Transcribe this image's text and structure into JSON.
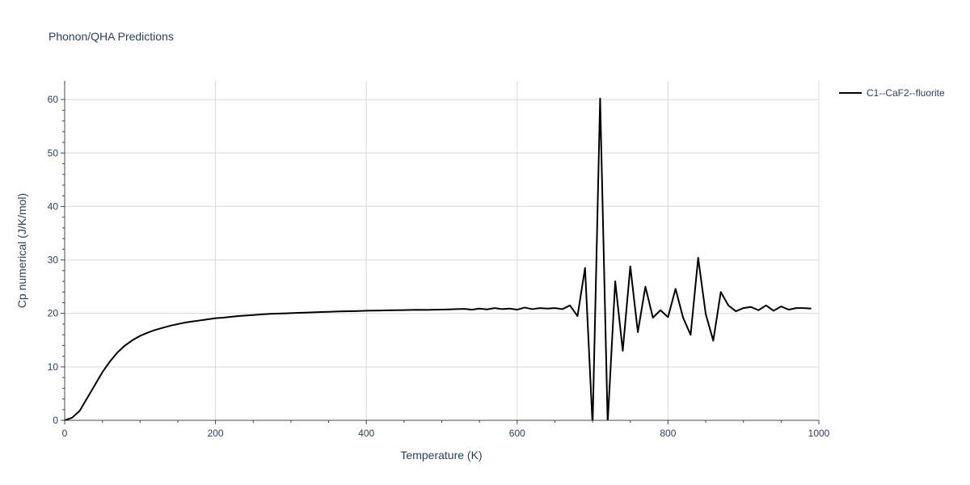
{
  "chart_data": {
    "type": "line",
    "title": "Phonon/QHA Predictions",
    "xlabel": "Temperature (K)",
    "ylabel": "Cp numerical (J/K/mol)",
    "xlim": [
      0,
      1000
    ],
    "ylim": [
      0,
      63.5
    ],
    "xticks": [
      0,
      200,
      400,
      600,
      800,
      1000
    ],
    "yticks": [
      0,
      10,
      20,
      30,
      40,
      50,
      60
    ],
    "grid": true,
    "legend_position": "top-right",
    "colors": {
      "line": "#000000",
      "grid": "#d9d9d9",
      "text": "#2a3f5f"
    },
    "series": [
      {
        "name": "C1--CaF2--fluorite",
        "x": [
          0,
          10,
          20,
          30,
          40,
          50,
          60,
          70,
          80,
          90,
          100,
          110,
          120,
          130,
          140,
          150,
          160,
          170,
          180,
          190,
          200,
          210,
          220,
          230,
          240,
          250,
          260,
          270,
          280,
          290,
          300,
          310,
          320,
          330,
          340,
          350,
          360,
          370,
          380,
          390,
          400,
          410,
          420,
          430,
          440,
          450,
          460,
          470,
          480,
          490,
          500,
          510,
          520,
          530,
          540,
          550,
          560,
          570,
          580,
          590,
          600,
          610,
          620,
          630,
          640,
          650,
          660,
          670,
          680,
          690,
          700,
          710,
          720,
          730,
          740,
          750,
          760,
          770,
          780,
          790,
          800,
          810,
          820,
          830,
          840,
          850,
          860,
          870,
          880,
          890,
          900,
          910,
          920,
          930,
          940,
          950,
          960,
          970,
          980,
          990
        ],
        "y": [
          0,
          0.5,
          1.8,
          4.2,
          6.6,
          9.0,
          11.0,
          12.7,
          14.0,
          15.0,
          15.8,
          16.4,
          16.9,
          17.3,
          17.7,
          18.0,
          18.3,
          18.5,
          18.7,
          18.9,
          19.1,
          19.2,
          19.35,
          19.5,
          19.6,
          19.7,
          19.8,
          19.9,
          19.95,
          20.0,
          20.05,
          20.1,
          20.15,
          20.2,
          20.25,
          20.3,
          20.35,
          20.4,
          20.42,
          20.45,
          20.5,
          20.52,
          20.55,
          20.58,
          20.6,
          20.62,
          20.65,
          20.68,
          20.65,
          20.7,
          20.72,
          20.75,
          20.8,
          20.85,
          20.7,
          20.9,
          20.75,
          21.0,
          20.8,
          20.9,
          20.7,
          21.1,
          20.8,
          21.0,
          20.9,
          21.0,
          20.8,
          21.5,
          19.5,
          28.5,
          -1.0,
          60.2,
          -0.5,
          26.0,
          13.0,
          28.8,
          16.5,
          25.0,
          19.2,
          20.6,
          19.3,
          24.6,
          19.2,
          16.0,
          30.4,
          19.9,
          14.9,
          24.0,
          21.5,
          20.4,
          21.0,
          21.2,
          20.6,
          21.5,
          20.5,
          21.3,
          20.7,
          21.0,
          21.0,
          20.9
        ]
      }
    ]
  }
}
